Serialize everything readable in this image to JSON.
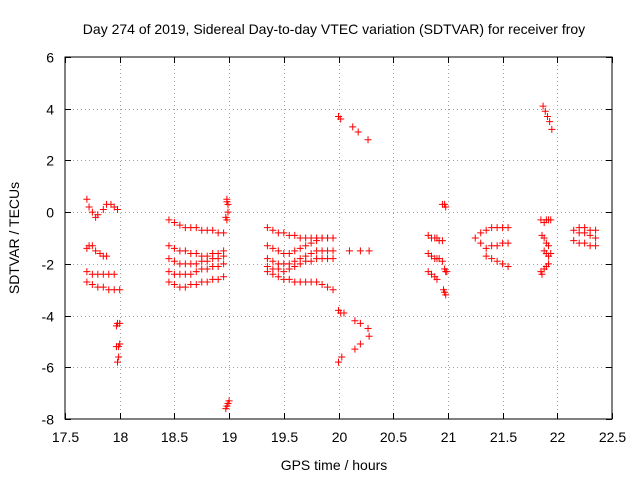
{
  "chart_data": {
    "type": "scatter",
    "title": "Day 274 of 2019, Sidereal Day-to-day VTEC variation (SDTVAR) for receiver froy",
    "xlabel": "GPS time / hours",
    "ylabel": "SDTVAR / TECUs",
    "xlim": [
      17.5,
      22.5
    ],
    "ylim": [
      -8,
      6
    ],
    "x_ticks": [
      "17.5",
      "18",
      "18.5",
      "19",
      "19.5",
      "20",
      "20.5",
      "21",
      "21.5",
      "22",
      "22.5"
    ],
    "y_ticks": [
      "-8",
      "-6",
      "-4",
      "-2",
      "0",
      "2",
      "4",
      "6"
    ],
    "grid": true,
    "legend": "none",
    "marker": "+",
    "color": "#ff0000",
    "series": [
      {
        "name": "SDTVAR",
        "x": [
          17.7,
          17.72,
          17.75,
          17.78,
          17.8,
          17.85,
          17.88,
          17.92,
          17.95,
          17.98,
          17.7,
          17.72,
          17.75,
          17.78,
          17.82,
          17.85,
          17.88,
          17.7,
          17.75,
          17.8,
          17.85,
          17.9,
          17.95,
          17.7,
          17.75,
          17.8,
          17.85,
          17.9,
          17.95,
          18.0,
          17.97,
          17.98,
          18.0,
          17.97,
          17.99,
          18.0,
          17.98,
          17.99,
          18.45,
          18.5,
          18.55,
          18.6,
          18.65,
          18.7,
          18.75,
          18.8,
          18.85,
          18.9,
          18.95,
          18.45,
          18.5,
          18.55,
          18.6,
          18.65,
          18.7,
          18.75,
          18.8,
          18.85,
          18.9,
          18.95,
          18.45,
          18.5,
          18.55,
          18.6,
          18.65,
          18.7,
          18.75,
          18.8,
          18.85,
          18.9,
          18.95,
          18.45,
          18.5,
          18.55,
          18.6,
          18.65,
          18.7,
          18.75,
          18.8,
          18.85,
          18.9,
          18.95,
          18.45,
          18.5,
          18.55,
          18.6,
          18.65,
          18.7,
          18.75,
          18.8,
          18.85,
          18.9,
          18.95,
          18.98,
          18.98,
          18.99,
          18.99,
          18.97,
          18.98,
          18.97,
          18.98,
          18.99,
          19.0,
          19.35,
          19.4,
          19.45,
          19.5,
          19.55,
          19.6,
          19.65,
          19.7,
          19.75,
          19.8,
          19.85,
          19.9,
          19.95,
          19.35,
          19.4,
          19.45,
          19.5,
          19.55,
          19.6,
          19.65,
          19.7,
          19.75,
          19.8,
          19.85,
          19.9,
          19.95,
          19.35,
          19.4,
          19.45,
          19.5,
          19.55,
          19.6,
          19.65,
          19.7,
          19.75,
          19.8,
          19.85,
          19.9,
          19.95,
          19.35,
          19.4,
          19.45,
          19.5,
          19.55,
          19.6,
          19.65,
          19.7,
          19.75,
          19.8,
          19.85,
          19.9,
          19.95,
          19.35,
          19.4,
          19.45,
          19.5,
          19.55,
          19.6,
          19.65,
          19.7,
          19.75,
          19.8,
          19.85,
          19.9,
          19.95,
          20.0,
          20.02,
          20.13,
          20.18,
          20.27,
          20.1,
          20.2,
          20.28,
          20.0,
          20.02,
          20.05,
          20.15,
          20.2,
          20.27,
          20.28,
          20.0,
          20.03,
          20.15,
          20.2,
          20.82,
          20.85,
          20.88,
          20.9,
          20.92,
          20.95,
          20.82,
          20.85,
          20.88,
          20.9,
          20.92,
          20.95,
          20.82,
          20.85,
          20.88,
          20.9,
          20.95,
          20.97,
          20.98,
          20.97,
          20.98,
          20.99,
          20.96,
          20.97,
          20.98,
          21.3,
          21.35,
          21.4,
          21.45,
          21.5,
          21.55,
          21.25,
          21.3,
          21.35,
          21.4,
          21.45,
          21.5,
          21.55,
          21.35,
          21.4,
          21.45,
          21.5,
          21.55,
          21.85,
          21.88,
          21.9,
          21.92,
          21.94,
          21.86,
          21.88,
          21.9,
          21.92,
          21.87,
          21.89,
          21.91,
          21.93,
          21.95,
          21.88,
          21.9,
          21.92,
          21.94,
          21.85,
          21.86,
          21.88,
          21.9,
          21.92,
          22.15,
          22.2,
          22.25,
          22.3,
          22.35,
          22.15,
          22.2,
          22.25,
          22.3,
          22.35,
          22.2,
          22.25,
          22.3,
          22.35
        ],
        "y": [
          0.5,
          0.2,
          0.0,
          -0.2,
          -0.1,
          0.1,
          0.3,
          0.3,
          0.2,
          0.1,
          -1.4,
          -1.3,
          -1.3,
          -1.5,
          -1.6,
          -1.7,
          -1.7,
          -2.3,
          -2.4,
          -2.4,
          -2.4,
          -2.4,
          -2.4,
          -2.7,
          -2.8,
          -2.9,
          -2.9,
          -3.0,
          -3.0,
          -3.0,
          -4.4,
          -4.3,
          -4.3,
          -5.2,
          -5.2,
          -5.1,
          -5.8,
          -5.6,
          -0.3,
          -0.4,
          -0.5,
          -0.6,
          -0.6,
          -0.6,
          -0.7,
          -0.7,
          -0.7,
          -0.8,
          -0.8,
          -1.3,
          -1.4,
          -1.5,
          -1.5,
          -1.6,
          -1.6,
          -1.7,
          -1.7,
          -1.6,
          -1.6,
          -1.5,
          -1.8,
          -1.9,
          -2.0,
          -2.0,
          -2.0,
          -2.0,
          -1.9,
          -1.9,
          -1.8,
          -1.8,
          -1.7,
          -2.3,
          -2.4,
          -2.4,
          -2.4,
          -2.4,
          -2.3,
          -2.2,
          -2.2,
          -2.1,
          -2.1,
          -2.0,
          -2.7,
          -2.8,
          -2.9,
          -2.9,
          -2.8,
          -2.8,
          -2.7,
          -2.7,
          -2.6,
          -2.6,
          -2.5,
          0.5,
          0.4,
          0.3,
          0.0,
          -0.2,
          -0.3,
          -7.6,
          -7.5,
          -7.4,
          -7.3,
          -0.6,
          -0.7,
          -0.8,
          -0.8,
          -0.9,
          -0.9,
          -1.0,
          -1.0,
          -1.0,
          -1.0,
          -1.0,
          -1.0,
          -1.0,
          -1.3,
          -1.4,
          -1.5,
          -1.6,
          -1.6,
          -1.5,
          -1.4,
          -1.3,
          -1.2,
          -1.1,
          -1.0,
          -1.0,
          -1.0,
          -1.8,
          -1.9,
          -2.0,
          -2.0,
          -2.0,
          -1.9,
          -1.8,
          -1.7,
          -1.6,
          -1.5,
          -1.5,
          -1.5,
          -1.5,
          -2.1,
          -2.2,
          -2.2,
          -2.3,
          -2.2,
          -2.1,
          -2.0,
          -1.9,
          -1.9,
          -1.8,
          -1.8,
          -1.8,
          -1.8,
          -2.3,
          -2.4,
          -2.5,
          -2.6,
          -2.6,
          -2.7,
          -2.7,
          -2.7,
          -2.7,
          -2.7,
          -2.8,
          -2.9,
          -3.0,
          3.7,
          3.6,
          3.3,
          3.1,
          2.8,
          -1.5,
          -1.5,
          -1.5,
          -3.8,
          -3.9,
          -3.9,
          -4.2,
          -4.3,
          -4.5,
          -4.8,
          -5.8,
          -5.6,
          -5.3,
          -5.1,
          -0.9,
          -1.0,
          -1.0,
          -1.0,
          -1.1,
          -1.1,
          -1.6,
          -1.7,
          -1.8,
          -1.8,
          -1.8,
          -1.9,
          -2.3,
          -2.4,
          -2.5,
          -2.6,
          0.3,
          0.3,
          0.2,
          -2.2,
          -2.3,
          -2.3,
          -3.0,
          -3.1,
          -3.2,
          -0.8,
          -0.7,
          -0.6,
          -0.6,
          -0.6,
          -0.6,
          -1.0,
          -1.2,
          -1.4,
          -1.3,
          -1.3,
          -1.2,
          -1.2,
          -1.7,
          -1.8,
          -1.9,
          -2.0,
          -2.1,
          -0.3,
          -0.4,
          -0.3,
          -0.3,
          -0.3,
          -0.9,
          -1.0,
          -1.2,
          -1.3,
          4.1,
          3.9,
          3.7,
          3.5,
          3.2,
          -1.5,
          -1.6,
          -1.7,
          -1.6,
          -2.3,
          -2.4,
          -2.2,
          -2.1,
          -2.0,
          -0.7,
          -0.8,
          -0.8,
          -0.9,
          -1.0,
          -1.1,
          -1.2,
          -1.2,
          -1.3,
          -1.3,
          -0.6,
          -0.6,
          -0.7,
          -0.7
        ]
      }
    ]
  }
}
